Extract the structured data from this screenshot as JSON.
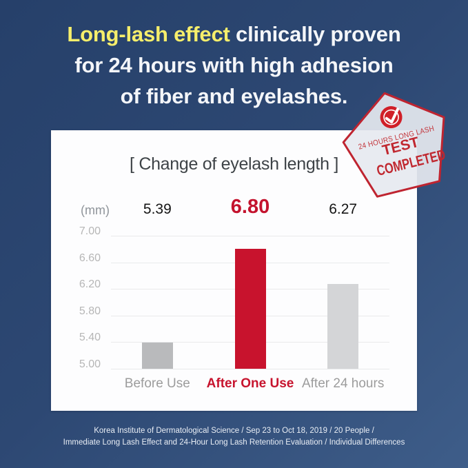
{
  "headline": {
    "highlight": "Long-lash effect",
    "rest_line1": " clinically proven",
    "line2": "for 24 hours with high adhesion",
    "line3": "of fiber and eyelashes.",
    "highlight_color": "#f6ee6b",
    "text_color": "#f4f6f9"
  },
  "stamp": {
    "icon": "check-circle",
    "line1": "24 HOURS LONG LASH",
    "line2": "TEST",
    "line3": "COMPLETED",
    "red": "#c0272f",
    "fill": "rgba(230,233,240,0.92)"
  },
  "card": {
    "title": "[ Change of eyelash length ]",
    "unit_label": "(mm)"
  },
  "chart_data": {
    "type": "bar",
    "title": "[ Change of eyelash length ]",
    "unit": "mm",
    "categories": [
      "Before Use",
      "After One Use",
      "After 24 hours"
    ],
    "values": [
      5.39,
      6.8,
      6.27
    ],
    "value_labels": [
      "5.39",
      "6.80",
      "6.27"
    ],
    "highlight_index": 1,
    "y_ticks": [
      7.0,
      6.6,
      6.2,
      5.8,
      5.4,
      5.0
    ],
    "y_tick_labels": [
      "7.00",
      "6.60",
      "6.20",
      "5.80",
      "5.40",
      "5.00"
    ],
    "ylim": [
      5.0,
      7.0
    ],
    "grid": true,
    "legend": false,
    "bar_colors": [
      "#b9babc",
      "#c8132d",
      "#d4d5d7"
    ],
    "category_colors": [
      "#9c9c9c",
      "#c7142e",
      "#9c9c9c"
    ],
    "value_label_colors": [
      "#141414",
      "#c4132e",
      "#141414"
    ]
  },
  "footer": {
    "line1": "Korea Institute of Dermatological Science / Sep 23 to Oct 18, 2019 / 20 People /",
    "line2": "Immediate Long Lash Effect and 24-Hour Long Lash Retention Evaluation / Individual Differences"
  },
  "colors": {
    "background_top": "#26406a",
    "background_bottom": "#3e5d89",
    "card_background": "#fdfdfe",
    "accent_red": "#c8132d",
    "highlight_yellow": "#f6ee6b"
  }
}
